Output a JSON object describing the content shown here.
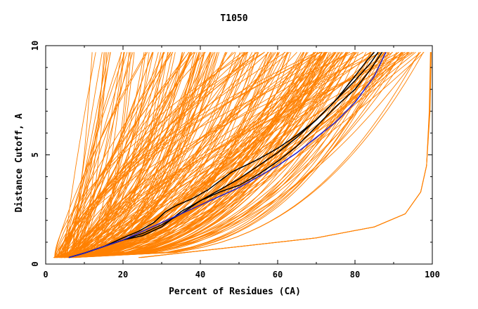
{
  "chart_data": {
    "type": "line",
    "title": "T1050",
    "xlabel": "Percent of Residues (CA)",
    "ylabel": "Distance Cutoff, A",
    "xlim": [
      0,
      100
    ],
    "ylim": [
      0,
      10
    ],
    "x_ticks": [
      0,
      20,
      40,
      60,
      80,
      100
    ],
    "y_ticks": [
      0,
      5,
      10
    ],
    "grid": false,
    "colors": {
      "models": "#ff8000",
      "highlight_black": "#000000",
      "highlight_blue": "#2020d0",
      "frame": "#000000",
      "background": "#ffffff"
    },
    "series": [
      {
        "color_key": "highlight_black",
        "x": [
          6,
          10,
          15,
          20,
          25,
          30,
          35,
          40,
          45,
          50,
          55,
          60,
          65,
          70,
          75,
          80,
          83,
          85
        ],
        "y": [
          0.3,
          0.5,
          0.8,
          1.1,
          1.4,
          1.8,
          2.3,
          2.9,
          3.4,
          3.9,
          4.5,
          5.1,
          5.8,
          6.6,
          7.5,
          8.6,
          9.3,
          9.7
        ]
      },
      {
        "color_key": "highlight_black",
        "x": [
          6,
          10,
          15,
          20,
          24,
          28,
          31,
          34,
          38,
          42,
          48,
          55,
          60,
          65,
          70,
          75,
          80,
          84,
          86
        ],
        "y": [
          0.3,
          0.5,
          0.8,
          1.2,
          1.5,
          1.9,
          2.4,
          2.7,
          3.0,
          3.4,
          4.2,
          4.8,
          5.3,
          5.9,
          6.6,
          7.5,
          8.4,
          9.2,
          9.7
        ]
      },
      {
        "color_key": "highlight_black",
        "x": [
          6,
          10,
          15,
          20,
          25,
          30,
          35,
          40,
          45,
          50,
          55,
          60,
          65,
          70,
          75,
          80,
          84,
          87
        ],
        "y": [
          0.3,
          0.5,
          0.8,
          1.1,
          1.3,
          1.7,
          2.4,
          2.9,
          3.3,
          3.6,
          4.1,
          4.7,
          5.4,
          6.3,
          7.2,
          8.0,
          8.9,
          9.7
        ]
      },
      {
        "color_key": "highlight_blue",
        "x": [
          6,
          10,
          15,
          20,
          25,
          30,
          35,
          40,
          45,
          50,
          55,
          60,
          65,
          70,
          75,
          80,
          85,
          88
        ],
        "y": [
          0.3,
          0.5,
          0.8,
          1.1,
          1.5,
          1.9,
          2.3,
          2.7,
          3.1,
          3.5,
          4.0,
          4.5,
          5.1,
          5.8,
          6.5,
          7.4,
          8.6,
          9.7
        ]
      }
    ]
  }
}
